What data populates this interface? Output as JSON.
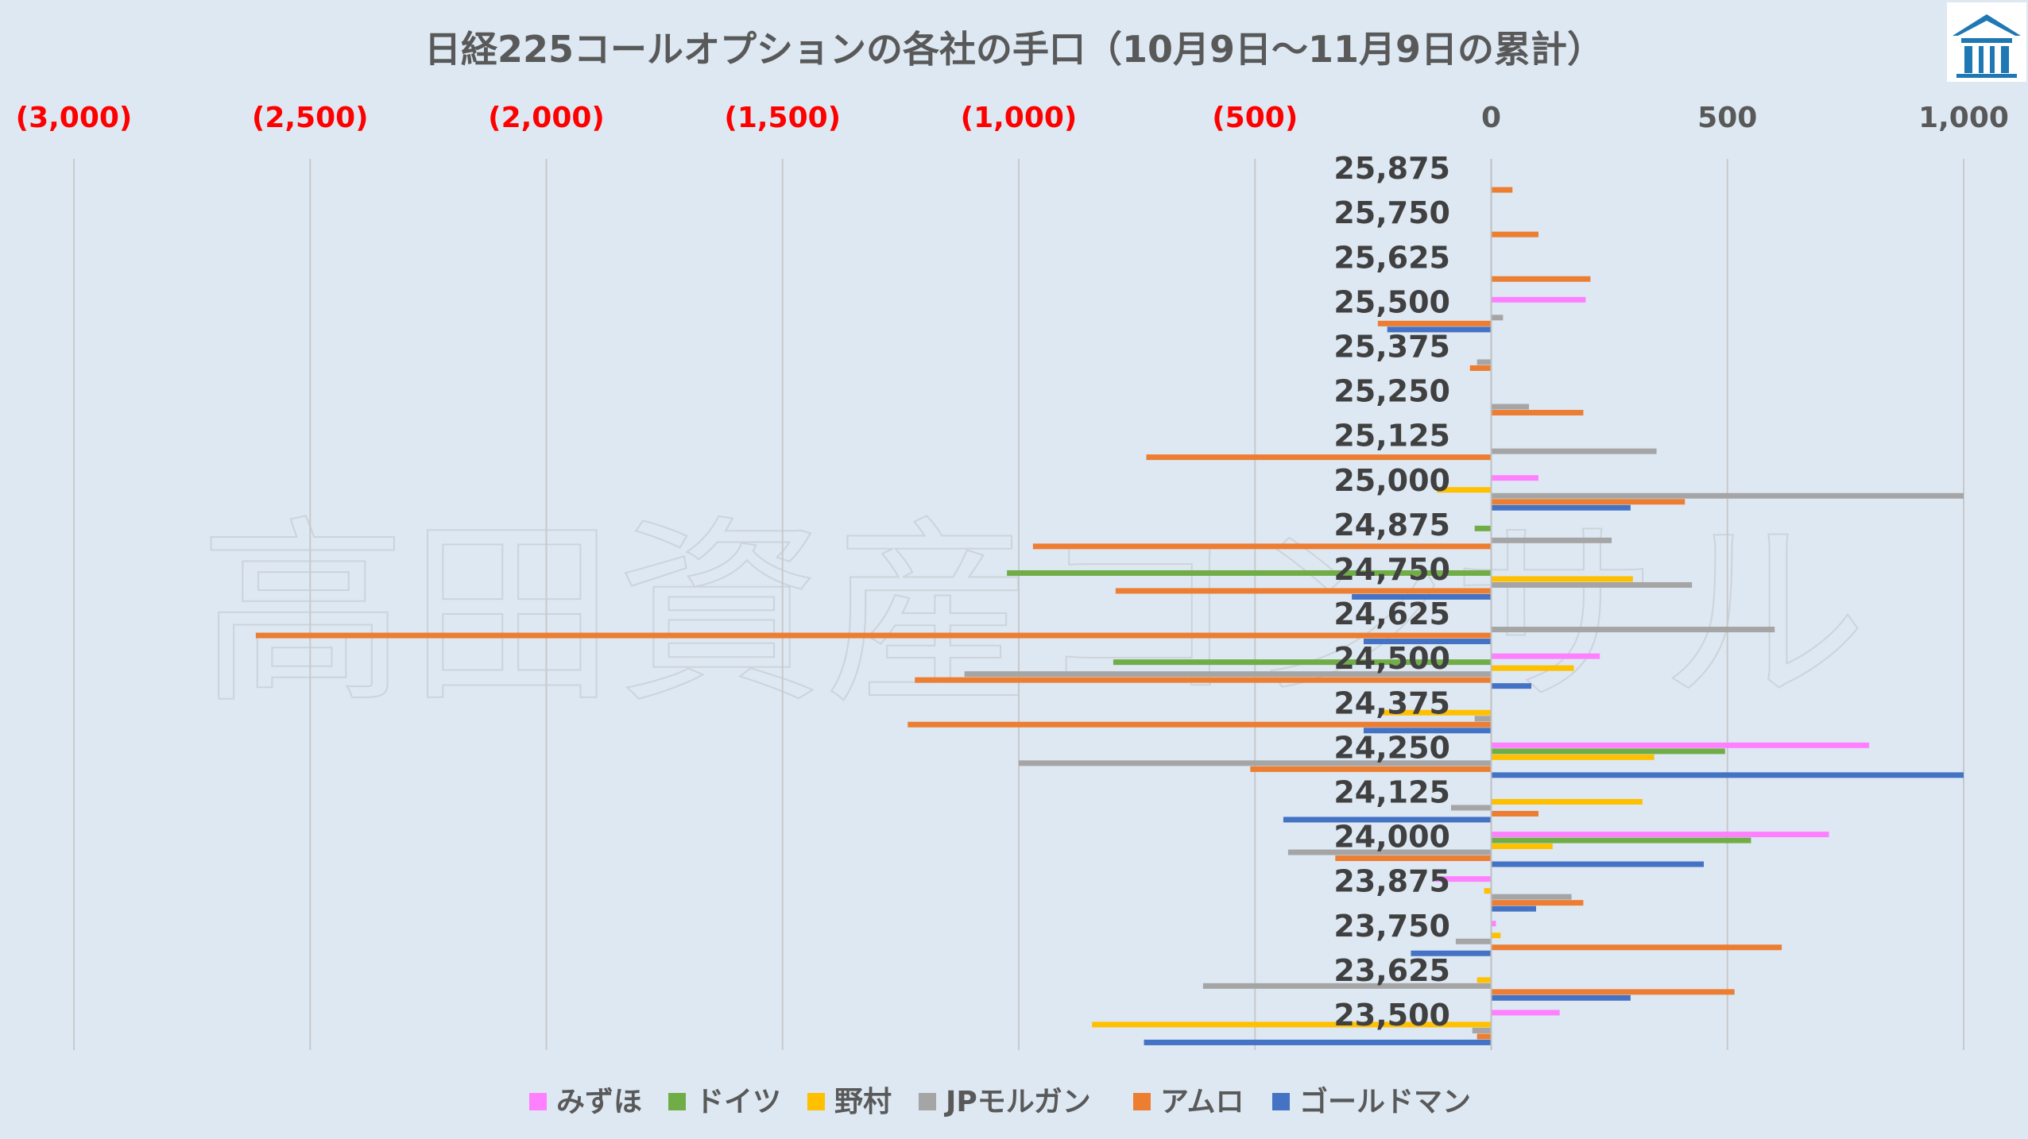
{
  "chart_data": {
    "type": "bar",
    "orientation": "horizontal",
    "title": "日経225コールオプションの各社の手口（10月9日～11月9日の累計）",
    "watermark": "高田資産コンサル",
    "logo": "company-logo",
    "xlim": [
      -3000,
      1000
    ],
    "x_tick_labels": [
      {
        "value": -3000,
        "label": "(3,000)"
      },
      {
        "value": -2500,
        "label": "(2,500)"
      },
      {
        "value": -2000,
        "label": "(2,000)"
      },
      {
        "value": -1500,
        "label": "(1,500)"
      },
      {
        "value": -1000,
        "label": "(1,000)"
      },
      {
        "value": -500,
        "label": "(500)"
      },
      {
        "value": 0,
        "label": "0"
      },
      {
        "value": 500,
        "label": "500"
      },
      {
        "value": 1000,
        "label": "1,000"
      }
    ],
    "negative_tick_color": "#ff0000",
    "positive_tick_color": "#595959",
    "grid": true,
    "legend_position": "bottom",
    "categories": [
      "25,875",
      "25,750",
      "25,625",
      "25,500",
      "25,375",
      "25,250",
      "25,125",
      "25,000",
      "24,875",
      "24,750",
      "24,625",
      "24,500",
      "24,375",
      "24,250",
      "24,125",
      "24,000",
      "23,875",
      "23,750",
      "23,625",
      "23,500"
    ],
    "series": [
      {
        "name": "みずほ",
        "color": "#ff80ff",
        "values": [
          0,
          0,
          0,
          200,
          0,
          0,
          0,
          100,
          0,
          0,
          0,
          230,
          0,
          800,
          0,
          715,
          -120,
          10,
          0,
          145
        ]
      },
      {
        "name": "ドイツ",
        "color": "#70ad47",
        "values": [
          0,
          0,
          0,
          0,
          0,
          0,
          0,
          0,
          -35,
          -1025,
          0,
          -800,
          0,
          495,
          0,
          550,
          0,
          0,
          0,
          0
        ]
      },
      {
        "name": "野村",
        "color": "#ffc000",
        "values": [
          0,
          0,
          0,
          0,
          0,
          0,
          0,
          -115,
          0,
          300,
          0,
          175,
          -230,
          345,
          320,
          130,
          -15,
          20,
          -30,
          -845
        ]
      },
      {
        "name": "JPモルガン",
        "color": "#a5a5a5",
        "values": [
          0,
          0,
          0,
          25,
          -30,
          80,
          350,
          1000,
          255,
          425,
          600,
          -1115,
          -35,
          -1000,
          -85,
          -430,
          170,
          -75,
          -610,
          -40
        ]
      },
      {
        "name": "アムロ",
        "color": "#ed7d31",
        "values": [
          45,
          100,
          210,
          -240,
          -45,
          195,
          -730,
          410,
          -970,
          -795,
          -2615,
          -1220,
          -1235,
          -510,
          100,
          -330,
          195,
          615,
          515,
          -30
        ]
      },
      {
        "name": "ゴールドマン",
        "color": "#4472c4",
        "values": [
          0,
          0,
          0,
          -220,
          0,
          0,
          0,
          295,
          0,
          -295,
          -270,
          85,
          -270,
          1000,
          -440,
          450,
          95,
          -170,
          295,
          -735
        ]
      }
    ]
  }
}
